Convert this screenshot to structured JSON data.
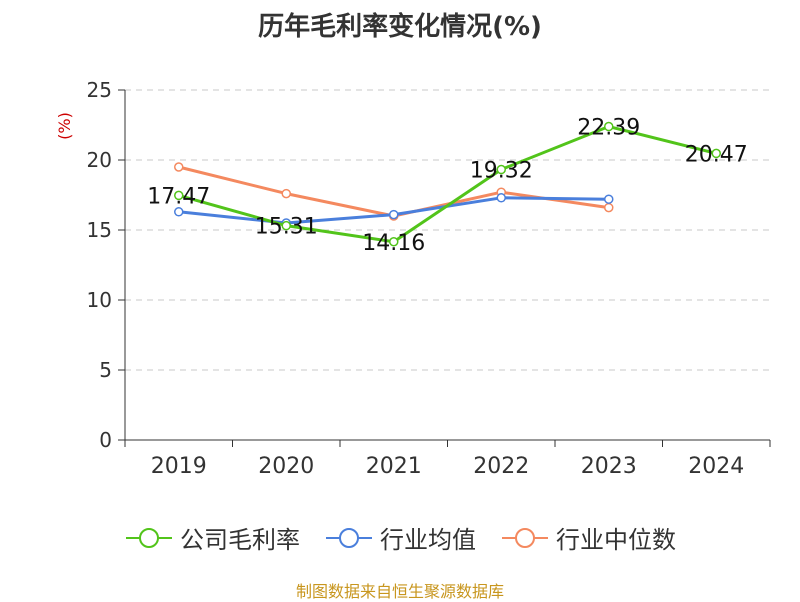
{
  "chart_data": {
    "type": "line",
    "title": "历年毛利率变化情况(%)",
    "ylabel": "(%)",
    "xlabel": "",
    "categories": [
      "2019",
      "2020",
      "2021",
      "2022",
      "2023",
      "2024"
    ],
    "ylim": [
      0,
      25
    ],
    "yticks": [
      "0",
      "5",
      "10",
      "15",
      "20",
      "25"
    ],
    "grid": true,
    "legend_position": "bottom",
    "series": [
      {
        "name": "公司毛利率",
        "color": "#52c41a",
        "values": [
          17.47,
          15.31,
          14.16,
          19.32,
          22.39,
          20.47
        ],
        "labels": [
          "17.47",
          "15.31",
          "14.16",
          "19.32",
          "22.39",
          "20.47"
        ]
      },
      {
        "name": "行业均值",
        "color": "#4a7fdc",
        "values": [
          16.3,
          15.5,
          16.1,
          17.3,
          17.2,
          null
        ]
      },
      {
        "name": "行业中位数",
        "color": "#f4895f",
        "values": [
          19.5,
          17.6,
          16.0,
          17.7,
          16.6,
          null
        ]
      }
    ]
  },
  "footer": {
    "source": "制图数据来自恒生聚源数据库"
  }
}
